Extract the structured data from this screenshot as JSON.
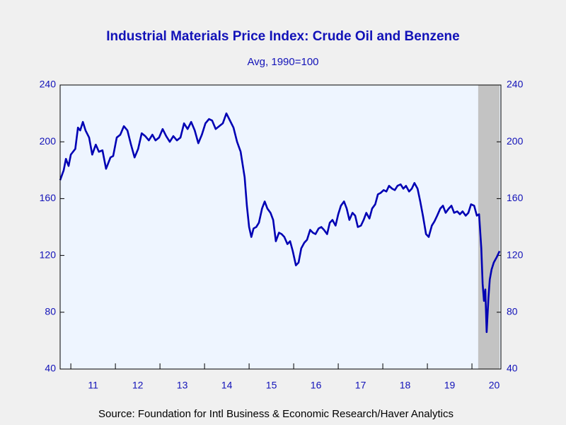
{
  "chart_data": {
    "type": "line",
    "title": "Industrial Materials Price Index: Crude Oil and Benzene",
    "subtitle": "Avg, 1990=100",
    "source": "Source:  Foundation for Intl Business & Economic Research/Haver Analytics",
    "xlim": [
      2010.76,
      2020.65
    ],
    "xticks": [
      {
        "value": 2011.5,
        "label": "11"
      },
      {
        "value": 2012.5,
        "label": "12"
      },
      {
        "value": 2013.5,
        "label": "13"
      },
      {
        "value": 2014.5,
        "label": "14"
      },
      {
        "value": 2015.5,
        "label": "15"
      },
      {
        "value": 2016.5,
        "label": "16"
      },
      {
        "value": 2017.5,
        "label": "17"
      },
      {
        "value": 2018.5,
        "label": "18"
      },
      {
        "value": 2019.5,
        "label": "19"
      },
      {
        "value": 2020.5,
        "label": "20"
      }
    ],
    "ylim": [
      40,
      240
    ],
    "yticks": [
      40,
      80,
      120,
      160,
      200,
      240
    ],
    "y2lim": [
      40,
      240
    ],
    "y2ticks": [
      40,
      80,
      120,
      160,
      200,
      240
    ],
    "shading": [
      2020.14,
      2020.62
    ],
    "shading_color": "#c3c3c3",
    "series": [
      {
        "color": "#0000b4",
        "x": [
          2010.76,
          2010.84,
          2010.89,
          2010.95,
          2011.0,
          2011.1,
          2011.16,
          2011.21,
          2011.27,
          2011.33,
          2011.41,
          2011.48,
          2011.56,
          2011.63,
          2011.71,
          2011.79,
          2011.89,
          2011.95,
          2012.03,
          2012.11,
          2012.19,
          2012.27,
          2012.35,
          2012.43,
          2012.51,
          2012.59,
          2012.67,
          2012.75,
          2012.83,
          2012.9,
          2012.98,
          2013.06,
          2013.14,
          2013.22,
          2013.3,
          2013.38,
          2013.46,
          2013.54,
          2013.62,
          2013.7,
          2013.78,
          2013.86,
          2013.94,
          2014.02,
          2014.1,
          2014.17,
          2014.25,
          2014.33,
          2014.41,
          2014.49,
          2014.57,
          2014.65,
          2014.73,
          2014.81,
          2014.86,
          2014.9,
          2014.95,
          2015.0,
          2015.05,
          2015.1,
          2015.16,
          2015.22,
          2015.29,
          2015.35,
          2015.41,
          2015.48,
          2015.54,
          2015.6,
          2015.67,
          2015.73,
          2015.79,
          2015.86,
          2015.92,
          2015.98,
          2016.05,
          2016.11,
          2016.17,
          2016.24,
          2016.3,
          2016.37,
          2016.43,
          2016.49,
          2016.56,
          2016.62,
          2016.68,
          2016.75,
          2016.81,
          2016.87,
          2016.94,
          2017.0,
          2017.06,
          2017.13,
          2017.19,
          2017.25,
          2017.32,
          2017.38,
          2017.44,
          2017.51,
          2017.57,
          2017.63,
          2017.7,
          2017.76,
          2017.83,
          2017.89,
          2017.95,
          2018.02,
          2018.08,
          2018.14,
          2018.21,
          2018.27,
          2018.33,
          2018.4,
          2018.46,
          2018.52,
          2018.59,
          2018.65,
          2018.71,
          2018.78,
          2018.84,
          2018.9,
          2018.97,
          2019.03,
          2019.1,
          2019.16,
          2019.22,
          2019.29,
          2019.35,
          2019.41,
          2019.48,
          2019.54,
          2019.6,
          2019.67,
          2019.73,
          2019.79,
          2019.86,
          2019.92,
          2019.98,
          2020.05,
          2020.11,
          2020.16,
          2020.21,
          2020.24,
          2020.27,
          2020.3,
          2020.33,
          2020.37,
          2020.4,
          2020.44,
          2020.49,
          2020.56,
          2020.62
        ],
        "values": [
          173,
          180,
          188,
          183,
          191,
          195,
          210,
          208,
          214,
          208,
          203,
          191,
          198,
          193,
          194,
          181,
          189,
          190,
          203,
          205,
          211,
          208,
          198,
          189,
          195,
          206,
          204,
          201,
          205,
          201,
          203,
          209,
          204,
          200,
          204,
          201,
          203,
          213,
          209,
          214,
          208,
          199,
          205,
          213,
          216,
          215,
          209,
          211,
          213,
          220,
          215,
          210,
          200,
          193,
          183,
          175,
          155,
          140,
          133,
          139,
          140,
          143,
          153,
          158,
          153,
          150,
          145,
          130,
          136,
          135,
          133,
          128,
          130,
          123,
          113,
          115,
          125,
          129,
          131,
          138,
          136,
          135,
          139,
          140,
          138,
          135,
          143,
          145,
          141,
          149,
          155,
          158,
          153,
          145,
          150,
          148,
          140,
          141,
          145,
          150,
          146,
          153,
          156,
          163,
          164,
          166,
          165,
          169,
          167,
          166,
          169,
          170,
          167,
          169,
          165,
          167,
          171,
          167,
          158,
          148,
          135,
          133,
          141,
          144,
          148,
          153,
          155,
          150,
          153,
          155,
          150,
          151,
          149,
          151,
          148,
          150,
          156,
          155,
          148,
          149,
          125,
          100,
          88,
          96,
          66,
          90,
          103,
          110,
          115,
          119,
          123
        ]
      }
    ]
  }
}
